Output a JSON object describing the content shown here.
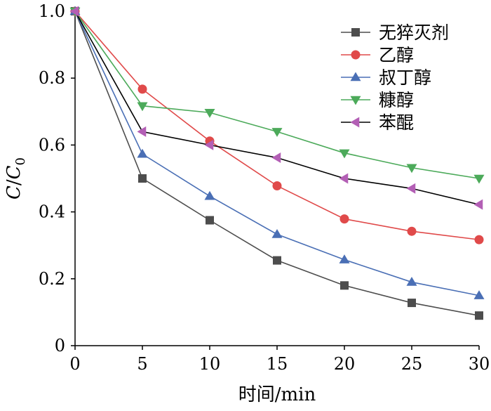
{
  "chart_data": {
    "type": "line",
    "x": [
      0,
      5,
      10,
      15,
      20,
      25,
      30
    ],
    "xlabel": "时间/min",
    "ylabel": "C/C0",
    "ylabel_parts": {
      "main": "C",
      "slash": "/",
      "denom": "C",
      "sub": "0"
    },
    "xlim": [
      0,
      30
    ],
    "ylim": [
      0,
      1.0
    ],
    "xticks": [
      0,
      5,
      10,
      15,
      20,
      25,
      30
    ],
    "yticks": [
      0,
      0.2,
      0.4,
      0.6,
      0.8,
      1.0
    ],
    "ytick_labels": [
      "0",
      "0.2",
      "0.4",
      "0.6",
      "0.8",
      "1.0"
    ],
    "xtick_labels": [
      "0",
      "5",
      "10",
      "15",
      "20",
      "25",
      "30"
    ],
    "grid": false,
    "legend_position": "top-right",
    "series": [
      {
        "name": "无猝灭剂",
        "color": "#4d4d4d",
        "line_color": "#4d4d4d",
        "marker": "square",
        "values": [
          1.0,
          0.5,
          0.375,
          0.255,
          0.18,
          0.128,
          0.09
        ]
      },
      {
        "name": "乙醇",
        "color": "#e04a4a",
        "line_color": "#e04a4a",
        "marker": "circle",
        "values": [
          1.0,
          0.767,
          0.612,
          0.478,
          0.379,
          0.342,
          0.317
        ]
      },
      {
        "name": "叔丁醇",
        "color": "#4a6fb5",
        "line_color": "#4a6fb5",
        "marker": "triangle-up",
        "values": [
          1.0,
          0.573,
          0.447,
          0.333,
          0.257,
          0.19,
          0.15
        ]
      },
      {
        "name": "糠醇",
        "color": "#4caa5a",
        "line_color": "#4caa5a",
        "marker": "triangle-down",
        "values": [
          1.0,
          0.717,
          0.697,
          0.64,
          0.576,
          0.532,
          0.5
        ]
      },
      {
        "name": "苯醌",
        "color": "#b35fb5",
        "line_color": "#000000",
        "marker": "triangle-left",
        "values": [
          1.0,
          0.64,
          0.6,
          0.562,
          0.5,
          0.47,
          0.422
        ]
      }
    ]
  }
}
